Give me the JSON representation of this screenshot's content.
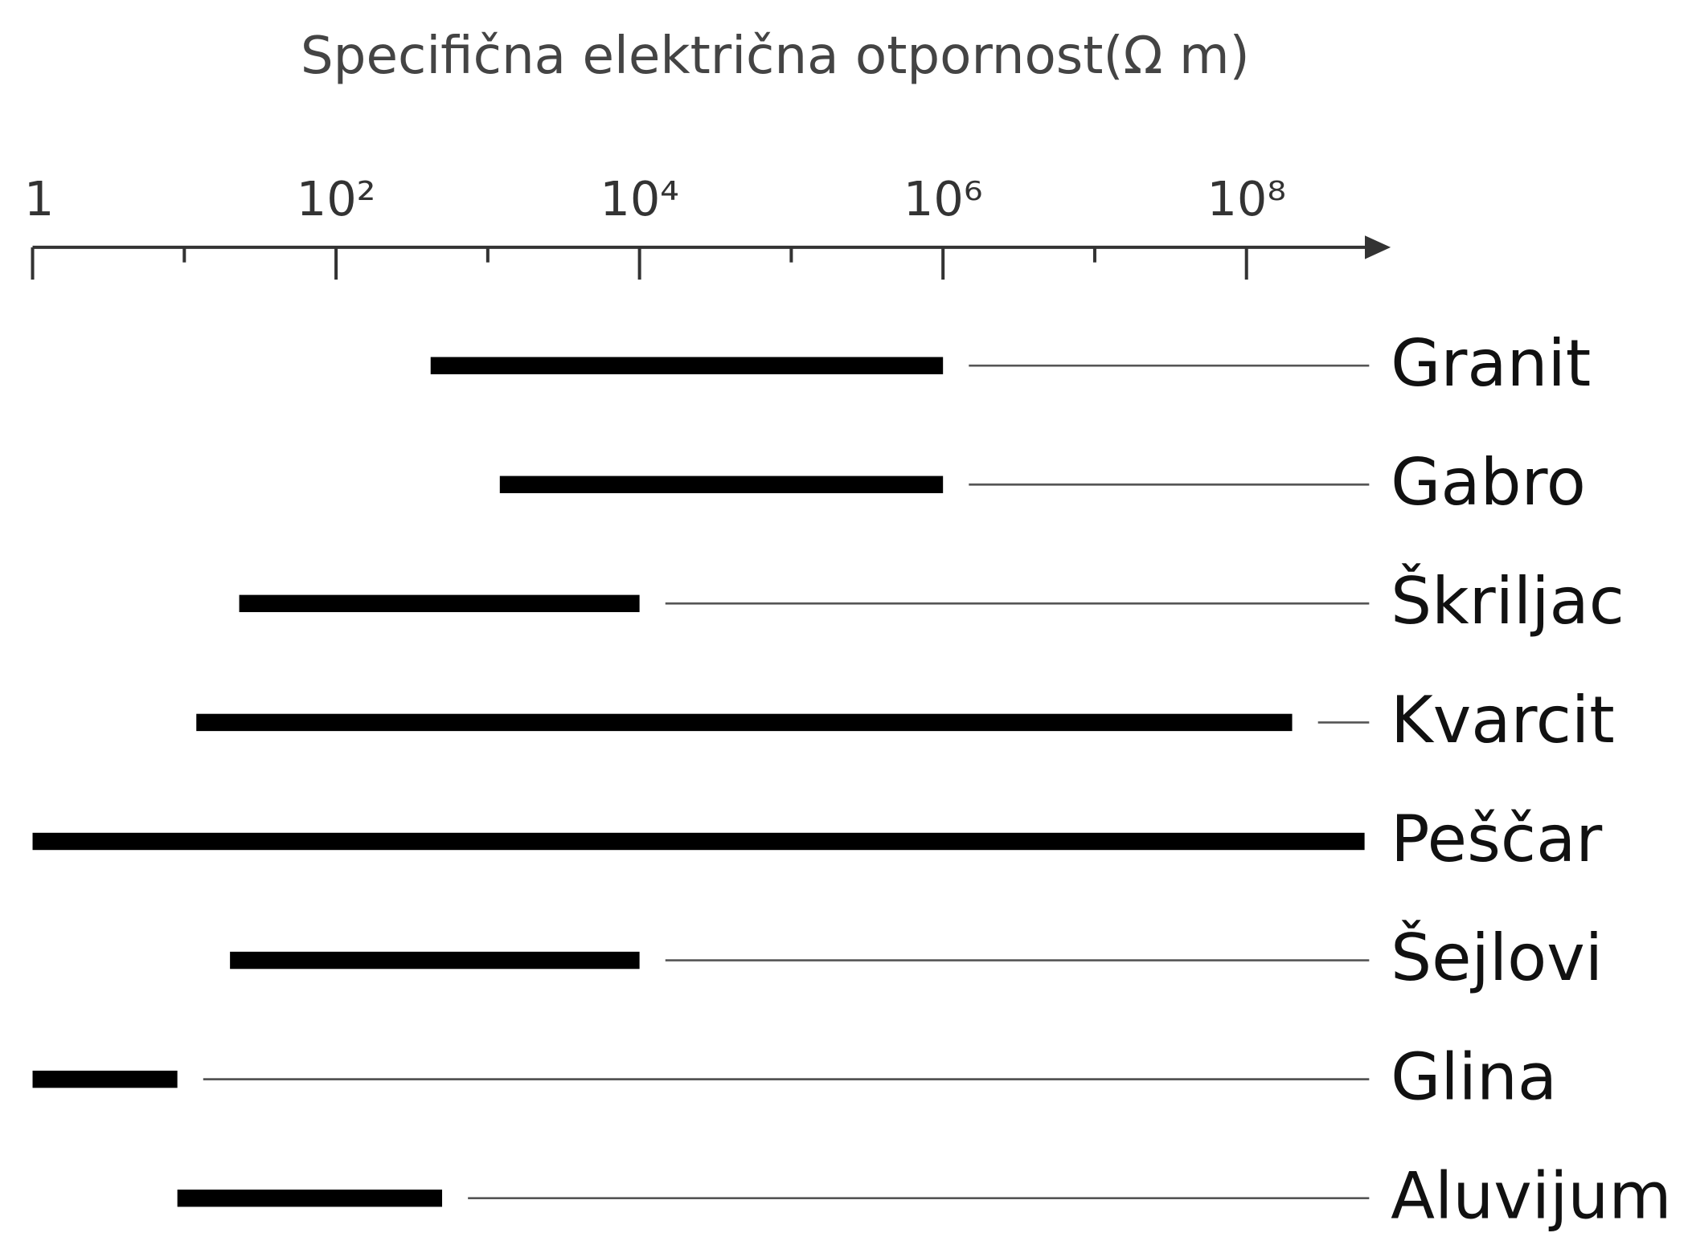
{
  "chart_data": {
    "type": "range_bar",
    "x_label": "Specifična električna otpornost(Ω m)",
    "x_scale": "log",
    "xlim": [
      1,
      1000000000
    ],
    "xticks": [
      1,
      {
        "value": 100,
        "label": "10²"
      },
      {
        "value": 10000,
        "label": "10⁴"
      },
      {
        "value": 1000000,
        "label": "10⁶"
      },
      {
        "value": 100000000,
        "label": "10⁸"
      }
    ],
    "minor_xticks": [
      10,
      1000,
      100000,
      10000000
    ],
    "categories": [
      "Granit",
      "Gabro",
      "Škriljac",
      "Kvarcit",
      "Peščar",
      "Šejlovi",
      "Glina",
      "Aluvijum"
    ],
    "low": [
      420,
      1200,
      23,
      12,
      1,
      20,
      1,
      9
    ],
    "high": [
      1000000,
      1000000,
      10000,
      200000000,
      600000000,
      10000,
      9,
      500
    ],
    "color": "#000000"
  }
}
